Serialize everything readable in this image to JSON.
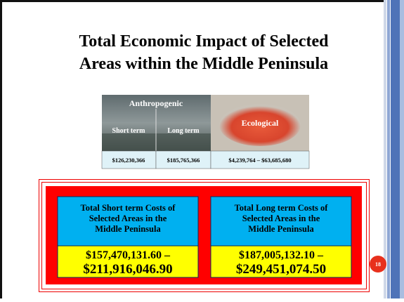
{
  "title": [
    "Total Economic Impact of Selected",
    "Areas within the Middle Peninsula"
  ],
  "image_table": {
    "header": "Anthropogenic",
    "columns": [
      "Short term",
      "Long term",
      "Ecological"
    ],
    "values": [
      "$126,230,366",
      "$185,765,366",
      "$4,239,764 – $63,685,680"
    ]
  },
  "boxes": [
    {
      "heading": [
        "Total Short term Costs of",
        "Selected Areas in the",
        "Middle Peninsula"
      ],
      "range": [
        "$157,470,131.60 –",
        "$211,916,046.90"
      ]
    },
    {
      "heading": [
        "Total Long term Costs of",
        "Selected Areas in the",
        "Middle Peninsula"
      ],
      "range": [
        "$187,005,132.10 –",
        "$249,451,074.50"
      ]
    }
  ],
  "page_number": "18"
}
